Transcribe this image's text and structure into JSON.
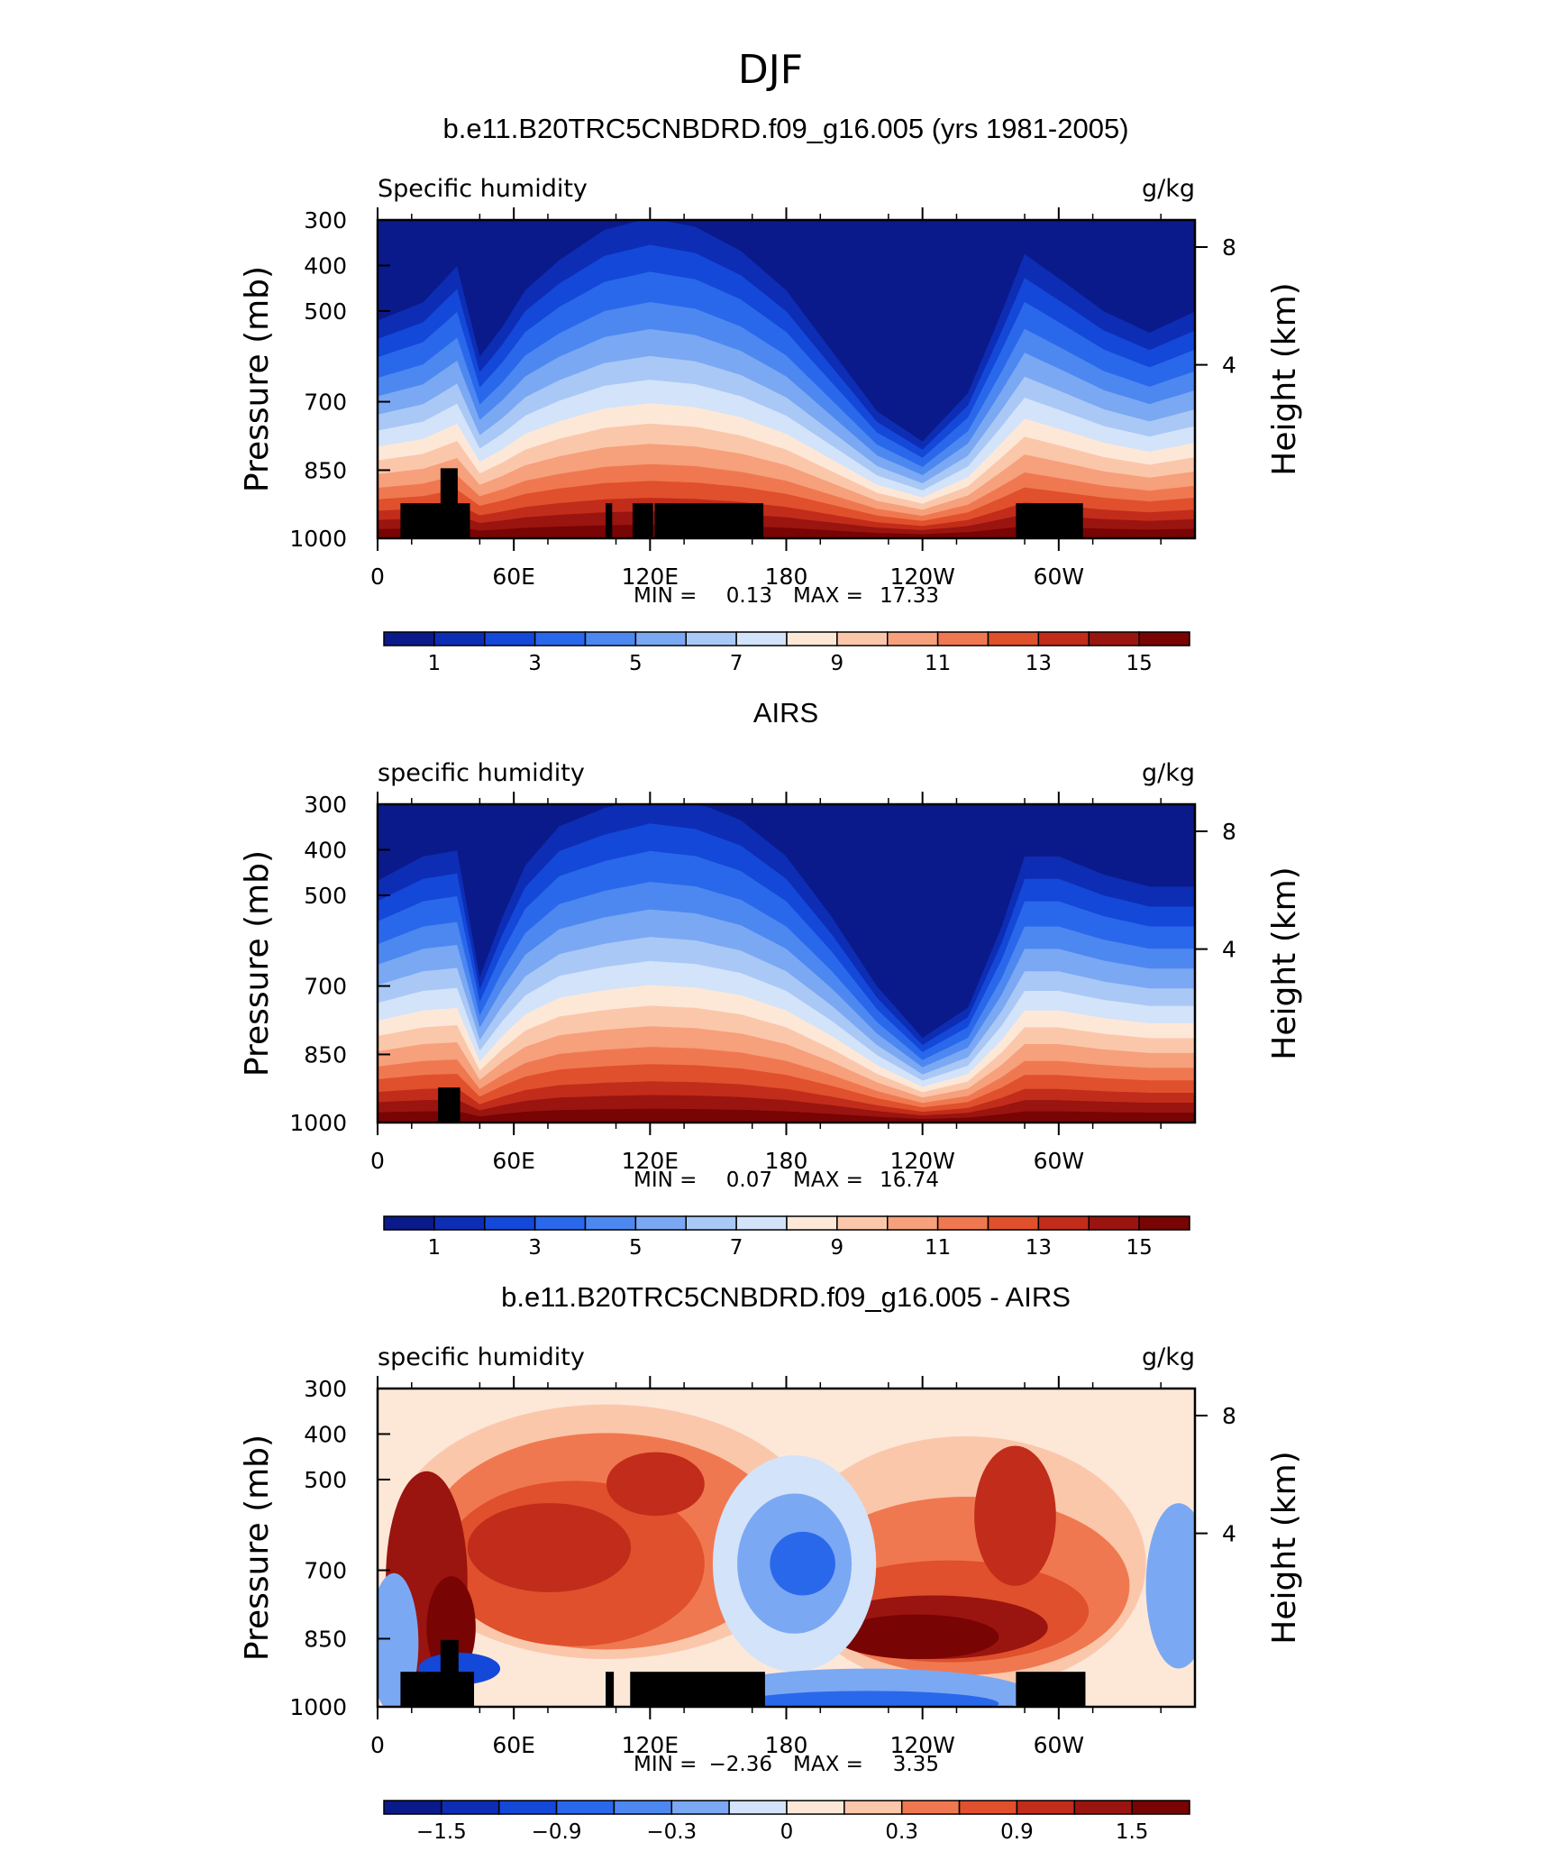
{
  "figure": {
    "title": "DJF"
  },
  "chart_data": [
    {
      "type": "heatmap",
      "title": "b.e11.B20TRC5CNBDRD.f09_g16.005 (yrs 1981-2005)",
      "left_label": "Specific humidity",
      "right_label": "g/kg",
      "ylabel": "Pressure (mb)",
      "y2label": "Height (km)",
      "yticks": [
        "300",
        "400",
        "500",
        "700",
        "850",
        "1000"
      ],
      "y2ticks": [
        "8",
        "4"
      ],
      "xticks": [
        "0",
        "60E",
        "120E",
        "180",
        "120W",
        "60W"
      ],
      "stats": {
        "min_label": "MIN =",
        "min": "0.13",
        "max_label": "MAX =",
        "max": "17.33"
      },
      "colorbar": {
        "labels": [
          "1",
          "3",
          "5",
          "7",
          "9",
          "11",
          "13",
          "15"
        ],
        "colors": [
          "#0a1a8a",
          "#0d2db5",
          "#1448d8",
          "#2a68eb",
          "#4d88f1",
          "#7ba8f3",
          "#a9c8f6",
          "#d3e3f9",
          "#fde8d8",
          "#fbc7ab",
          "#f6a07c",
          "#f07850",
          "#e0502c",
          "#c22c1a",
          "#9a1410",
          "#780404"
        ]
      }
    },
    {
      "type": "heatmap",
      "title": "AIRS",
      "left_label": "specific humidity",
      "right_label": "g/kg",
      "ylabel": "Pressure (mb)",
      "y2label": "Height (km)",
      "yticks": [
        "300",
        "400",
        "500",
        "700",
        "850",
        "1000"
      ],
      "y2ticks": [
        "8",
        "4"
      ],
      "xticks": [
        "0",
        "60E",
        "120E",
        "180",
        "120W",
        "60W"
      ],
      "stats": {
        "min_label": "MIN =",
        "min": "0.07",
        "max_label": "MAX =",
        "max": "16.74"
      },
      "colorbar": {
        "labels": [
          "1",
          "3",
          "5",
          "7",
          "9",
          "11",
          "13",
          "15"
        ],
        "colors": [
          "#0a1a8a",
          "#0d2db5",
          "#1448d8",
          "#2a68eb",
          "#4d88f1",
          "#7ba8f3",
          "#a9c8f6",
          "#d3e3f9",
          "#fde8d8",
          "#fbc7ab",
          "#f6a07c",
          "#f07850",
          "#e0502c",
          "#c22c1a",
          "#9a1410",
          "#780404"
        ]
      }
    },
    {
      "type": "heatmap",
      "title": "b.e11.B20TRC5CNBDRD.f09_g16.005 - AIRS",
      "left_label": "specific humidity",
      "right_label": "g/kg",
      "ylabel": "Pressure (mb)",
      "y2label": "Height (km)",
      "yticks": [
        "300",
        "400",
        "500",
        "700",
        "850",
        "1000"
      ],
      "y2ticks": [
        "8",
        "4"
      ],
      "xticks": [
        "0",
        "60E",
        "120E",
        "180",
        "120W",
        "60W"
      ],
      "stats": {
        "min_label": "MIN =",
        "min": "−2.36",
        "max_label": "MAX =",
        "max": "3.35"
      },
      "colorbar": {
        "labels": [
          "−1.5",
          "−0.9",
          "−0.3",
          "0",
          "0.3",
          "0.9",
          "1.5"
        ],
        "colors": [
          "#0a1a8a",
          "#0d2db5",
          "#1448d8",
          "#2a68eb",
          "#4d88f1",
          "#7ba8f3",
          "#d3e3f9",
          "#fde8d8",
          "#fbc7ab",
          "#f07850",
          "#e0502c",
          "#c22c1a",
          "#9a1410",
          "#780404"
        ]
      }
    }
  ]
}
